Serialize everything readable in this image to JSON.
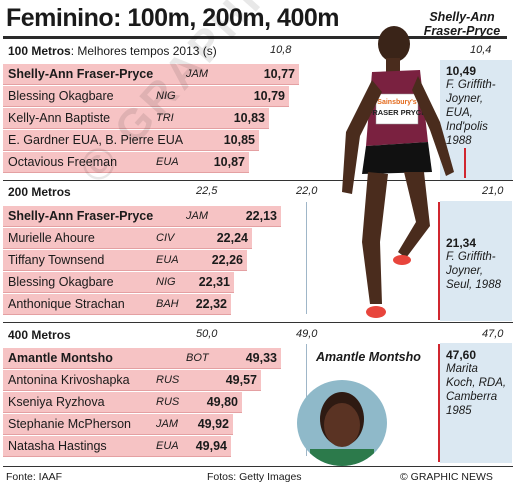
{
  "title": "Feminino: 100m, 200m, 400m",
  "featured_athlete": "Shelly-Ann Fraser-Pryce",
  "bib": {
    "sponsor": "Sainsbury's",
    "name": "FRASER PRYCE"
  },
  "colors": {
    "bar": "#f6c3c4",
    "panel": "#dbe8f2",
    "record_line": "#d0262f"
  },
  "chart_data": [
    {
      "type": "bar",
      "event": "100 Metros",
      "subtitle": "Melhores tempos 2013 (s)",
      "scale_labels": [
        "10,8",
        "10,4"
      ],
      "rows": [
        {
          "name": "Shelly-Ann Fraser-Pryce",
          "country": "JAM",
          "time": "10,77",
          "value": 10.77
        },
        {
          "name": "Blessing Okagbare",
          "country": "NIG",
          "time": "10,79",
          "value": 10.79
        },
        {
          "name": "Kelly-Ann Baptiste",
          "country": "TRI",
          "time": "10,83",
          "value": 10.83
        },
        {
          "name": "E. Gardner EUA, B. Pierre EUA",
          "country": "",
          "time": "10,85",
          "value": 10.85
        },
        {
          "name": "Octavious Freeman",
          "country": "EUA",
          "time": "10,87",
          "value": 10.87
        }
      ],
      "world_record": {
        "time": "10,49",
        "holder": "F. Griffith-Joyner, EUA, Ind'polis 1988"
      }
    },
    {
      "type": "bar",
      "event": "200 Metros",
      "scale_labels": [
        "22,5",
        "22,0",
        "21,0"
      ],
      "rows": [
        {
          "name": "Shelly-Ann Fraser-Pryce",
          "country": "JAM",
          "time": "22,13",
          "value": 22.13
        },
        {
          "name": "Murielle Ahoure",
          "country": "CIV",
          "time": "22,24",
          "value": 22.24
        },
        {
          "name": "Tiffany Townsend",
          "country": "EUA",
          "time": "22,26",
          "value": 22.26
        },
        {
          "name": "Blessing Okagbare",
          "country": "NIG",
          "time": "22,31",
          "value": 22.31
        },
        {
          "name": "Anthonique Strachan",
          "country": "BAH",
          "time": "22,32",
          "value": 22.32
        }
      ],
      "world_record": {
        "time": "21,34",
        "holder": "F. Griffith-Joyner, Seul, 1988"
      }
    },
    {
      "type": "bar",
      "event": "400 Metros",
      "scale_labels": [
        "50,0",
        "49,0",
        "47,0"
      ],
      "rows": [
        {
          "name": "Amantle Montsho",
          "country": "BOT",
          "time": "49,33",
          "value": 49.33
        },
        {
          "name": "Antonina Krivoshapka",
          "country": "RUS",
          "time": "49,57",
          "value": 49.57
        },
        {
          "name": "Kseniya Ryzhova",
          "country": "RUS",
          "time": "49,80",
          "value": 49.8
        },
        {
          "name": "Stephanie McPherson",
          "country": "JAM",
          "time": "49,92",
          "value": 49.92
        },
        {
          "name": "Natasha Hastings",
          "country": "EUA",
          "time": "49,94",
          "value": 49.94
        }
      ],
      "world_record": {
        "time": "47,60",
        "holder": "Marita Koch, RDA, Camberra 1985"
      },
      "photo_caption": "Amantle Montsho"
    }
  ],
  "footer": {
    "source": "Fonte: IAAF",
    "photos": "Fotos: Getty Images",
    "copyright": "© GRAPHIC NEWS"
  },
  "watermark": "© GRAPHIC NEWS"
}
